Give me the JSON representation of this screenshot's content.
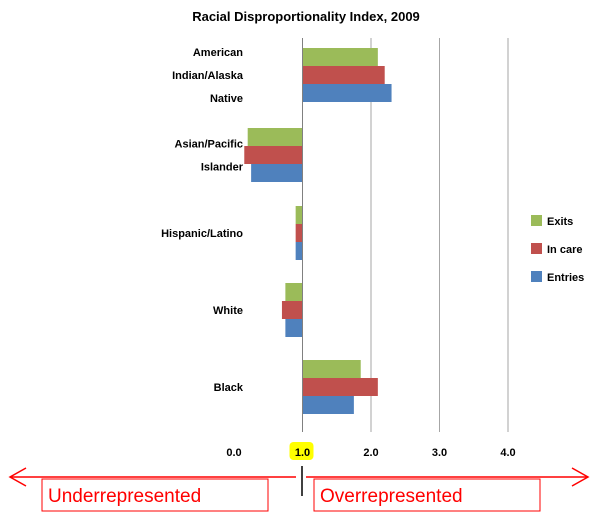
{
  "chart_data": {
    "type": "bar",
    "orientation": "horizontal",
    "title": "Racial Disproportionality Index, 2009",
    "categories": [
      [
        "American",
        "Indian/Alaska",
        "Native"
      ],
      [
        "Asian/Pacific",
        "Islander"
      ],
      [
        "Hispanic/Latino"
      ],
      [
        "White"
      ],
      [
        "Black"
      ]
    ],
    "series": [
      {
        "name": "Exits",
        "color": "#9bbb59",
        "values": [
          2.1,
          0.2,
          0.9,
          0.75,
          1.85
        ]
      },
      {
        "name": "In care",
        "color": "#c0504d",
        "values": [
          2.2,
          0.15,
          0.9,
          0.7,
          2.1
        ]
      },
      {
        "name": "Entries",
        "color": "#4f81bd",
        "values": [
          2.3,
          0.25,
          0.9,
          0.75,
          1.75
        ]
      }
    ],
    "xlim": [
      0,
      4
    ],
    "xticks": [
      "0.0",
      "1.0",
      "2.0",
      "3.0",
      "4.0"
    ],
    "baseline": 1.0,
    "highlight_tick": "1.0",
    "grid": true,
    "legend": "right"
  },
  "annotations": {
    "under": "Underrepresented",
    "over": "Overrepresented",
    "color": "#ff0000",
    "highlight_color": "#ffff00"
  }
}
